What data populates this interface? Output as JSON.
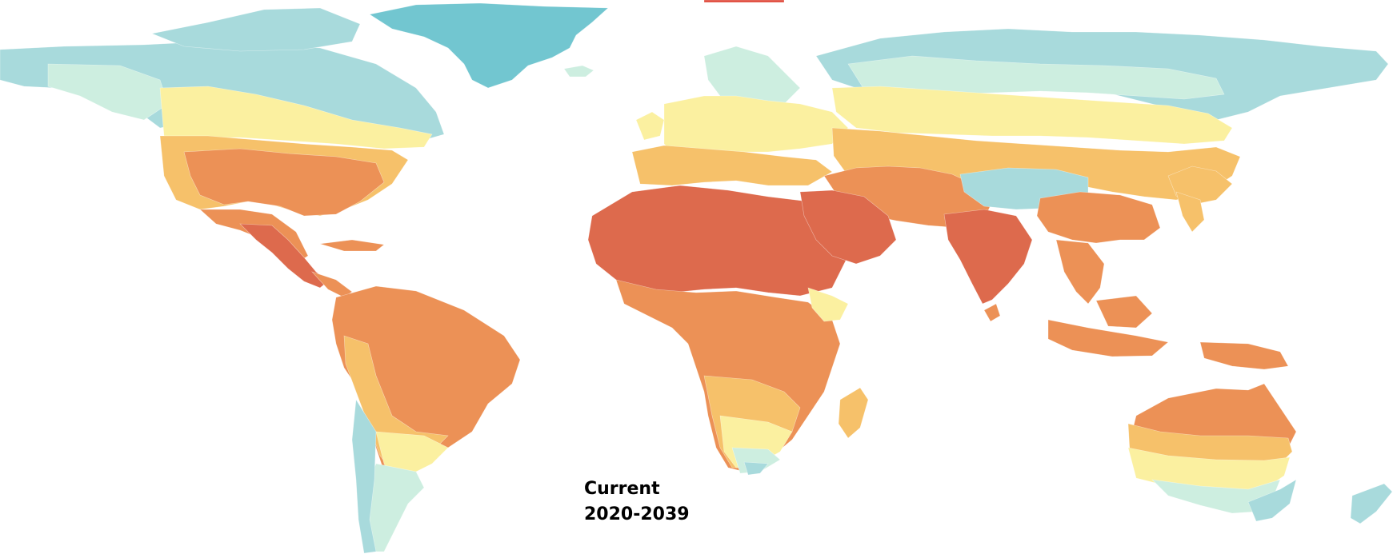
{
  "map": {
    "caption_line1": "Current",
    "caption_line2": "2020-2039",
    "colors": {
      "cold": "#a8dadc",
      "cool": "#cdeee0",
      "mild": "#fbf0a0",
      "warm": "#f6c16a",
      "hot": "#ec9156",
      "very_hot": "#dd6a4d",
      "ice": "#72c6d0",
      "accent": "#e04a3c"
    }
  }
}
